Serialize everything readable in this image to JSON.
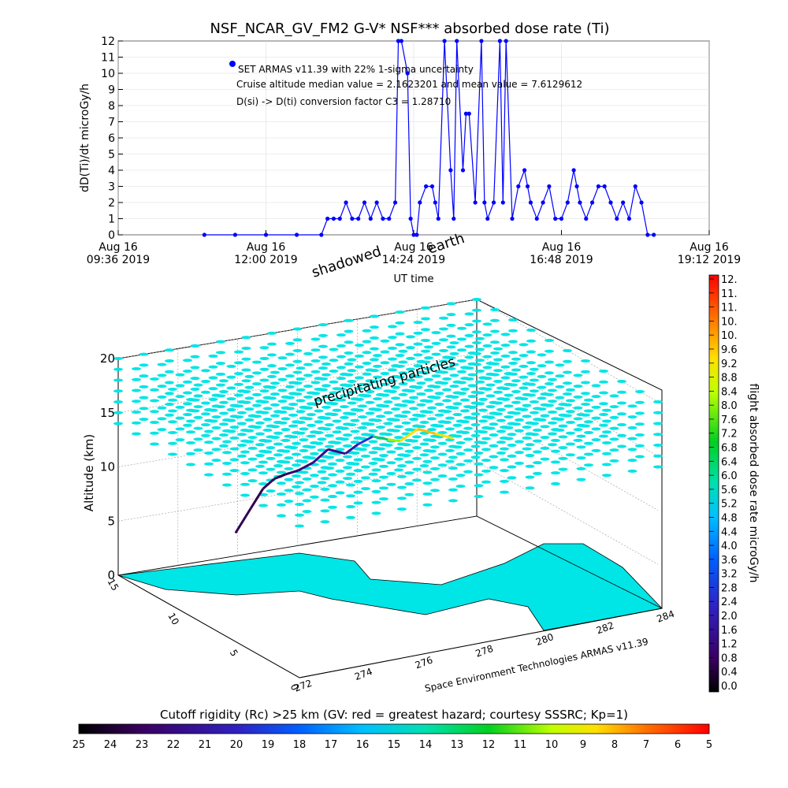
{
  "figure": {
    "title": "NSF_NCAR_GV_FM2 G-V* NSF*** absorbed dose rate (Ti)",
    "footer_credit": "Space Environment Technologies ARMAS v11.39"
  },
  "legend_text": {
    "entry": "SET ARMAS v11.39 with 22% 1-sigma uncertainty",
    "line2": "Cruise altitude median value = 2.1623201 and mean value = 7.6129612",
    "line3": "D(si) -> D(ti) conversion factor C3 = 1.28710"
  },
  "annotations": {
    "shadowed": "shadowed",
    "earth": "earth",
    "precipitating": "precipitating particles"
  },
  "top_axis": {
    "ylabel": "dD(Ti)/dt microGy/h",
    "xlabel": "UT time",
    "yticks": [
      "0",
      "1",
      "2",
      "3",
      "4",
      "5",
      "6",
      "7",
      "8",
      "9",
      "10",
      "11",
      "12"
    ],
    "xticks": [
      {
        "line1": "Aug 16",
        "line2": "09:36 2019"
      },
      {
        "line1": "Aug 16",
        "line2": "12:00 2019"
      },
      {
        "line1": "Aug 16",
        "line2": "14:24 2019"
      },
      {
        "line1": "Aug 16",
        "line2": "16:48 2019"
      },
      {
        "line1": "Aug 16",
        "line2": "19:12 2019"
      }
    ]
  },
  "axis3d": {
    "zlabel": "Altitude (km)",
    "zticks": [
      "0",
      "5",
      "10",
      "15",
      "20"
    ],
    "yticks": [
      "0",
      "5",
      "10",
      "15"
    ],
    "xticks": [
      "272",
      "274",
      "276",
      "278",
      "280",
      "282",
      "284"
    ]
  },
  "colorbar_right": {
    "label": "flight absorbed dose rate microGy/h",
    "ticks": [
      "12.",
      "11.",
      "11.",
      "10.",
      "10.",
      "9.6",
      "9.2",
      "8.8",
      "8.4",
      "8.0",
      "7.6",
      "7.2",
      "6.8",
      "6.4",
      "6.0",
      "5.6",
      "5.2",
      "4.8",
      "4.4",
      "4.0",
      "3.6",
      "3.2",
      "2.8",
      "2.4",
      "2.0",
      "1.6",
      "1.2",
      "0.8",
      "0.4",
      "0.0"
    ]
  },
  "colorbar_bottom": {
    "label": "Cutoff rigidity (Rc) >25 km (GV: red = greatest hazard; courtesy SSSRC; Kp=1)",
    "ticks": [
      "25",
      "24",
      "23",
      "22",
      "21",
      "20",
      "19",
      "18",
      "17",
      "16",
      "15",
      "14",
      "13",
      "12",
      "11",
      "10",
      "9",
      "8",
      "7",
      "6",
      "5"
    ]
  },
  "colors": {
    "series": "#0000ff",
    "ocean": "#00e5e5",
    "grid": "#bbbbbb"
  },
  "chart_data": [
    {
      "type": "line",
      "title": "NSF_NCAR_GV_FM2 G-V* NSF*** absorbed dose rate (Ti)",
      "xlabel": "UT time",
      "ylabel": "dD(Ti)/dt microGy/h",
      "xlim_hours": [
        9.6,
        19.2
      ],
      "ylim": [
        0,
        12
      ],
      "series": [
        {
          "name": "SET ARMAS v11.39 with 22% 1-sigma uncertainty",
          "x_hours": [
            11.0,
            11.5,
            12.0,
            12.5,
            12.9,
            13.0,
            13.1,
            13.2,
            13.3,
            13.4,
            13.5,
            13.6,
            13.7,
            13.8,
            13.9,
            14.0,
            14.1,
            14.15,
            14.2,
            14.3,
            14.35,
            14.4,
            14.45,
            14.5,
            14.6,
            14.7,
            14.75,
            14.8,
            14.9,
            15.0,
            15.05,
            15.1,
            15.2,
            15.25,
            15.3,
            15.4,
            15.5,
            15.55,
            15.6,
            15.7,
            15.8,
            15.85,
            15.9,
            16.0,
            16.1,
            16.2,
            16.25,
            16.3,
            16.4,
            16.5,
            16.6,
            16.7,
            16.8,
            16.9,
            17.0,
            17.05,
            17.1,
            17.2,
            17.3,
            17.4,
            17.5,
            17.6,
            17.7,
            17.8,
            17.9,
            18.0,
            18.1,
            18.2,
            18.3
          ],
          "values": [
            0,
            0,
            0,
            0,
            0,
            1,
            1,
            1,
            2,
            1,
            1,
            2,
            1,
            2,
            1,
            1,
            2,
            12,
            12,
            10,
            1,
            0,
            0,
            2,
            3,
            3,
            2,
            1,
            12,
            4,
            1,
            12,
            4,
            7.5,
            7.5,
            2,
            12,
            2,
            1,
            2,
            12,
            2,
            12,
            1,
            3,
            4,
            3,
            2,
            1,
            2,
            3,
            1,
            1,
            2,
            4,
            3,
            2,
            1,
            2,
            3,
            3,
            2,
            1,
            2,
            1,
            3,
            2,
            0,
            0
          ]
        }
      ]
    },
    {
      "type": "scatter",
      "title": "",
      "xlabel": "",
      "ylabel": "",
      "zlabel": "Altitude (km)",
      "xlim": [
        272,
        284
      ],
      "ylim": [
        0,
        15
      ],
      "zlim": [
        0,
        20
      ],
      "colorbar": {
        "label": "flight absorbed dose rate microGy/h",
        "range": [
          0.0,
          12.0
        ]
      },
      "series": [
        {
          "name": "",
          "x": [
            273.5,
            274.0,
            274.5,
            275.0,
            275.5,
            276.0,
            276.5,
            277.0,
            277.5,
            278.0,
            278.5,
            279.0,
            279.5,
            280.0,
            280.5,
            281.0
          ],
          "y": [
            9.0,
            9.0,
            9.2,
            9.5,
            9.8,
            10.0,
            10.0,
            10.0,
            9.8,
            10.0,
            10.0,
            10.0,
            10.2,
            10.0,
            9.8,
            9.5
          ],
          "z": [
            7.0,
            9.0,
            10.5,
            11.0,
            11.0,
            11.0,
            11.5,
            12.5,
            12.0,
            12.5,
            13.0,
            12.5,
            12.0,
            13.0,
            12.5,
            12.0
          ],
          "dose": [
            0.8,
            1.0,
            1.0,
            1.2,
            1.0,
            1.2,
            1.6,
            2.0,
            1.8,
            2.4,
            3.2,
            6.0,
            8.0,
            9.6,
            10.0,
            9.6
          ]
        }
      ]
    }
  ]
}
